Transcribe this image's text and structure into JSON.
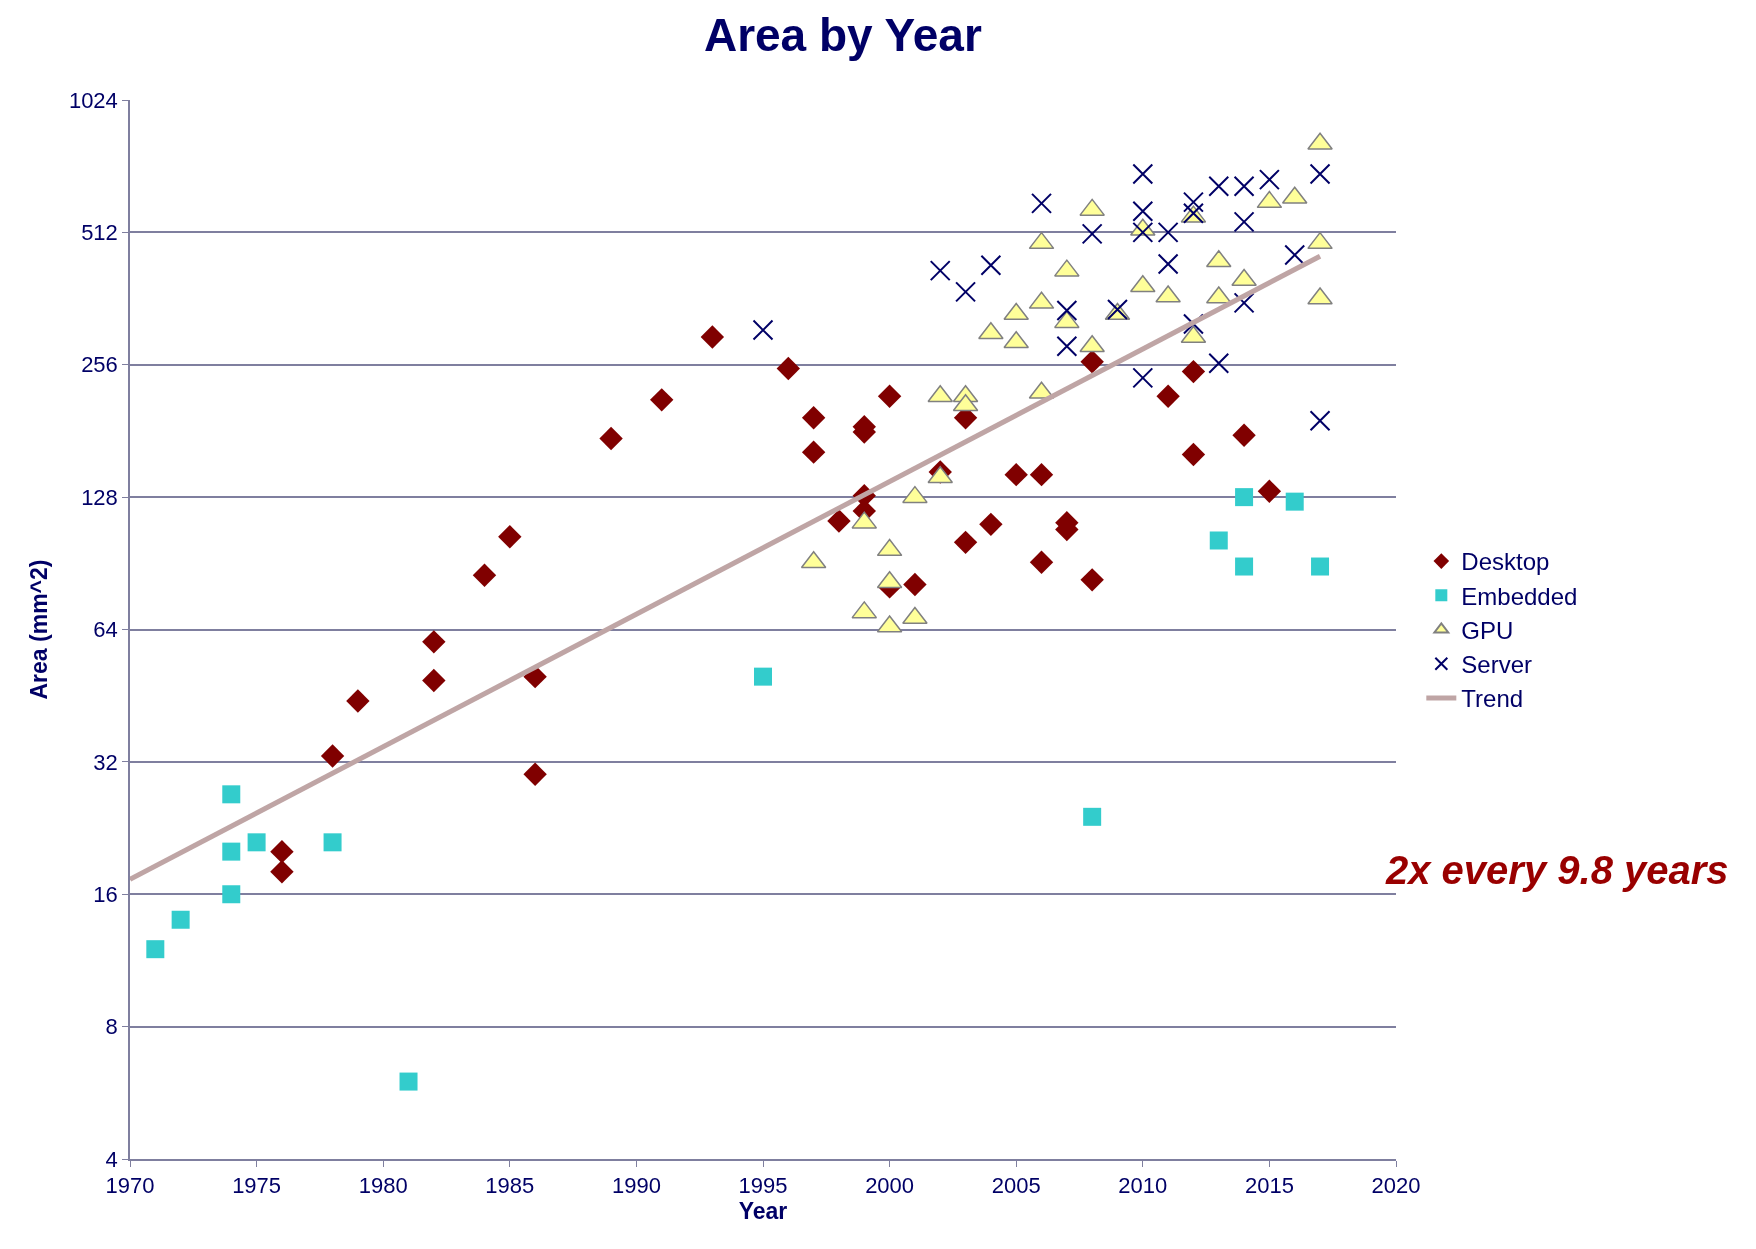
{
  "chart_data": {
    "type": "scatter",
    "title": "Area by Year",
    "xlabel": "Year",
    "ylabel": "Area (mm^2)",
    "log": "y",
    "xlim": [
      1970,
      2020
    ],
    "xticks": [
      1970,
      1975,
      1980,
      1985,
      1990,
      1995,
      2000,
      2005,
      2010,
      2015,
      2020
    ],
    "ylim": [
      4,
      1024
    ],
    "yticks": [
      4,
      8,
      16,
      32,
      64,
      128,
      256,
      512,
      1024
    ],
    "grid": "y",
    "legend": "right",
    "annotations": [
      "2x every 9.8 years"
    ],
    "series": [
      {
        "name": "Desktop",
        "color": "#800000",
        "marker": "diamond",
        "x": [
          1976,
          1976,
          1978,
          1979,
          1982,
          1982,
          1984,
          1985,
          1986,
          1986,
          1989,
          1991,
          1993,
          1996,
          1997,
          1997,
          1998,
          1999,
          1999,
          1999,
          1999,
          2000,
          2000,
          2001,
          2002,
          2003,
          2003,
          2004,
          2005,
          2006,
          2006,
          2007,
          2007,
          2008,
          2008,
          2011,
          2012,
          2012,
          2014,
          2015
        ],
        "values": [
          20,
          18,
          33,
          44,
          60,
          49,
          85,
          104,
          50,
          30,
          174,
          213,
          296,
          251,
          194,
          162,
          113,
          185,
          180,
          129,
          119,
          217,
          80,
          81,
          146,
          194,
          101,
          111,
          144,
          144,
          91,
          112,
          108,
          260,
          83,
          217,
          247,
          160,
          177,
          132
        ]
      },
      {
        "name": "Embedded",
        "color": "#33cccc",
        "marker": "square",
        "x": [
          1971,
          1972,
          1974,
          1974,
          1974,
          1975,
          1978,
          1981,
          1995,
          2008,
          2013,
          2014,
          2014,
          2016,
          2017
        ],
        "values": [
          12,
          14,
          27,
          20,
          16,
          21,
          21,
          6,
          50,
          24,
          102,
          128,
          89,
          125,
          89
        ]
      },
      {
        "name": "GPU",
        "color": "#ffff99",
        "marker": "triangle",
        "x": [
          1997,
          1999,
          1999,
          2000,
          2000,
          2000,
          2001,
          2001,
          2002,
          2002,
          2003,
          2003,
          2004,
          2005,
          2005,
          2006,
          2006,
          2006,
          2007,
          2007,
          2008,
          2008,
          2009,
          2010,
          2010,
          2011,
          2012,
          2012,
          2013,
          2013,
          2014,
          2015,
          2016,
          2017,
          2017,
          2017
        ],
        "values": [
          91,
          112,
          70,
          97,
          82,
          65,
          128,
          68,
          217,
          142,
          217,
          207,
          302,
          334,
          288,
          484,
          354,
          221,
          419,
          320,
          576,
          282,
          334,
          519,
          386,
          366,
          556,
          296,
          440,
          364,
          399,
          600,
          614,
          814,
          484,
          362
        ]
      },
      {
        "name": "Server",
        "color": "#000066",
        "marker": "cross",
        "x": [
          1995,
          2002,
          2003,
          2004,
          2006,
          2007,
          2007,
          2008,
          2009,
          2010,
          2010,
          2010,
          2010,
          2011,
          2011,
          2012,
          2012,
          2012,
          2013,
          2013,
          2014,
          2014,
          2014,
          2015,
          2016,
          2017,
          2017
        ],
        "values": [
          307,
          419,
          375,
          431,
          596,
          340,
          282,
          508,
          342,
          695,
          572,
          512,
          239,
          512,
          434,
          600,
          566,
          317,
          652,
          258,
          652,
          541,
          354,
          675,
          455,
          695,
          191
        ]
      },
      {
        "name": "Trend",
        "color": "#bfa5a5",
        "type": "line",
        "marker": "none",
        "x": [
          1970,
          2017
        ],
        "values": [
          17.3,
          452
        ]
      }
    ]
  }
}
